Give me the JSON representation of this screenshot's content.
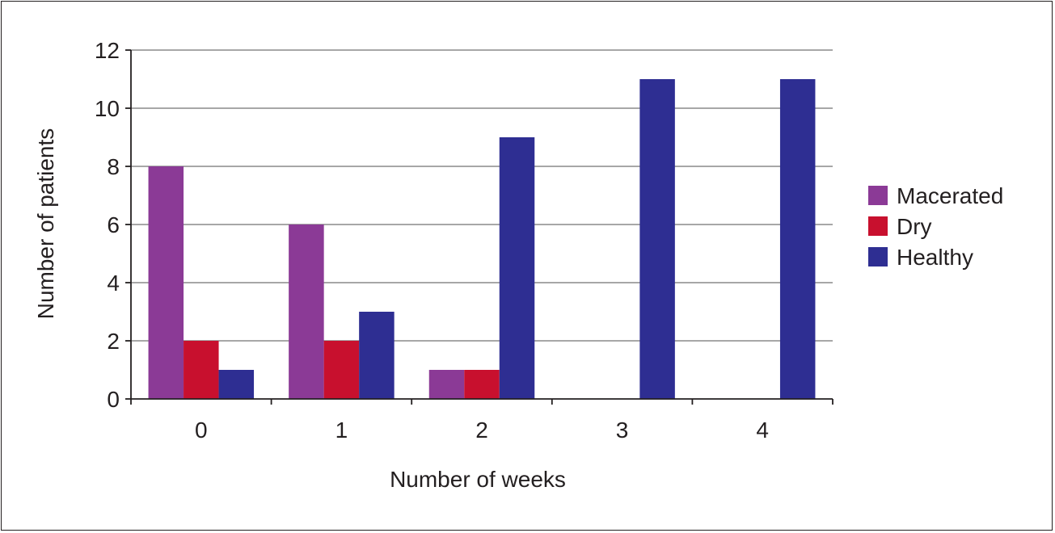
{
  "chart_data": {
    "type": "bar",
    "title": "",
    "xlabel": "Number of weeks",
    "ylabel": "Number of patients",
    "categories": [
      "0",
      "1",
      "2",
      "3",
      "4"
    ],
    "series": [
      {
        "name": "Macerated",
        "color": "#8b3a96",
        "values": [
          8,
          6,
          1,
          0,
          0
        ]
      },
      {
        "name": "Dry",
        "color": "#c8102e",
        "values": [
          2,
          2,
          1,
          0,
          0
        ]
      },
      {
        "name": "Healthy",
        "color": "#2e2e92",
        "values": [
          1,
          3,
          9,
          11,
          11
        ]
      }
    ],
    "ylim": [
      0,
      12
    ],
    "yticks": [
      "0",
      "2",
      "4",
      "6",
      "8",
      "10",
      "12"
    ],
    "grid": true,
    "legend_position": "right"
  }
}
